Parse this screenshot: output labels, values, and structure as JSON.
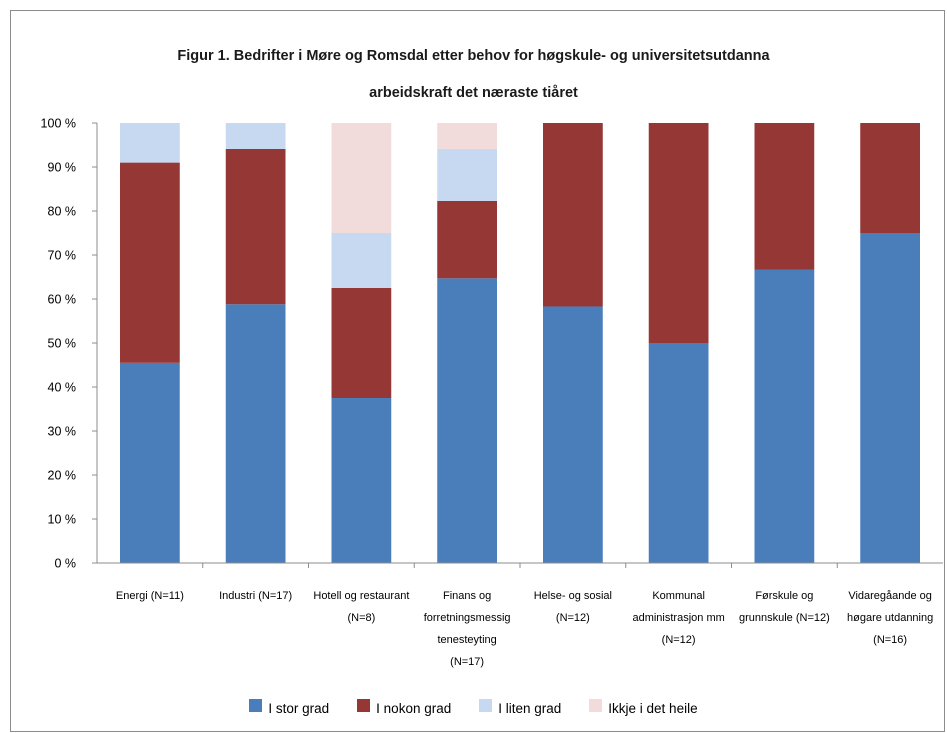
{
  "chart_data": {
    "type": "bar",
    "stacked": true,
    "title": "Figur 1. Bedrifter i Møre og Romsdal etter behov for høgskule- og universitetsutdanna arbeidskraft det næraste tiåret",
    "title_lines": [
      "Figur 1. Bedrifter i Møre og Romsdal etter behov for høgskule- og universitetsutdanna",
      "arbeidskraft det næraste tiåret"
    ],
    "categories": [
      "Energi (N=11)",
      "Industri (N=17)",
      "Hotell og restaurant (N=8)",
      "Finans og forretningsmessig tenesteyting (N=17)",
      "Helse- og sosial (N=12)",
      "Kommunal administrasjon mm (N=12)",
      "Førskule og grunnskule (N=12)",
      "Vidaregåande og høgare utdanning (N=16)"
    ],
    "category_label_lines": [
      [
        "Energi (N=11)"
      ],
      [
        "Industri (N=17)"
      ],
      [
        "Hotell og restaurant",
        "(N=8)"
      ],
      [
        "Finans og",
        "forretningsmessig",
        "tenesteyting",
        "(N=17)"
      ],
      [
        "Helse- og sosial",
        "(N=12)"
      ],
      [
        "Kommunal",
        "administrasjon mm",
        "(N=12)"
      ],
      [
        "Førskule og",
        "grunnskule (N=12)"
      ],
      [
        "Vidaregåande og",
        "høgare utdanning",
        "(N=16)"
      ]
    ],
    "series": [
      {
        "name": "I stor grad",
        "color": "#4a7ebb",
        "values": [
          45.5,
          58.8,
          37.5,
          64.7,
          58.3,
          50.0,
          66.7,
          75.0
        ]
      },
      {
        "name": "I nokon grad",
        "color": "#953735",
        "values": [
          45.5,
          35.3,
          25.0,
          17.6,
          41.7,
          50.0,
          33.3,
          25.0
        ]
      },
      {
        "name": "I liten grad",
        "color": "#c6d9f1",
        "values": [
          9.0,
          5.9,
          12.5,
          11.8,
          0,
          0,
          0,
          0
        ]
      },
      {
        "name": "Ikkje i det heile",
        "color": "#f2dcdb",
        "values": [
          0,
          0,
          25.0,
          5.9,
          0,
          0,
          0,
          0
        ]
      }
    ],
    "y_ticks": [
      "0 %",
      "10 %",
      "20 %",
      "30 %",
      "40 %",
      "50 %",
      "60 %",
      "70 %",
      "80 %",
      "90 %",
      "100 %"
    ],
    "ylim": [
      0,
      100
    ],
    "xlabel": "",
    "ylabel": "",
    "grid": false,
    "legend_position": "bottom"
  }
}
